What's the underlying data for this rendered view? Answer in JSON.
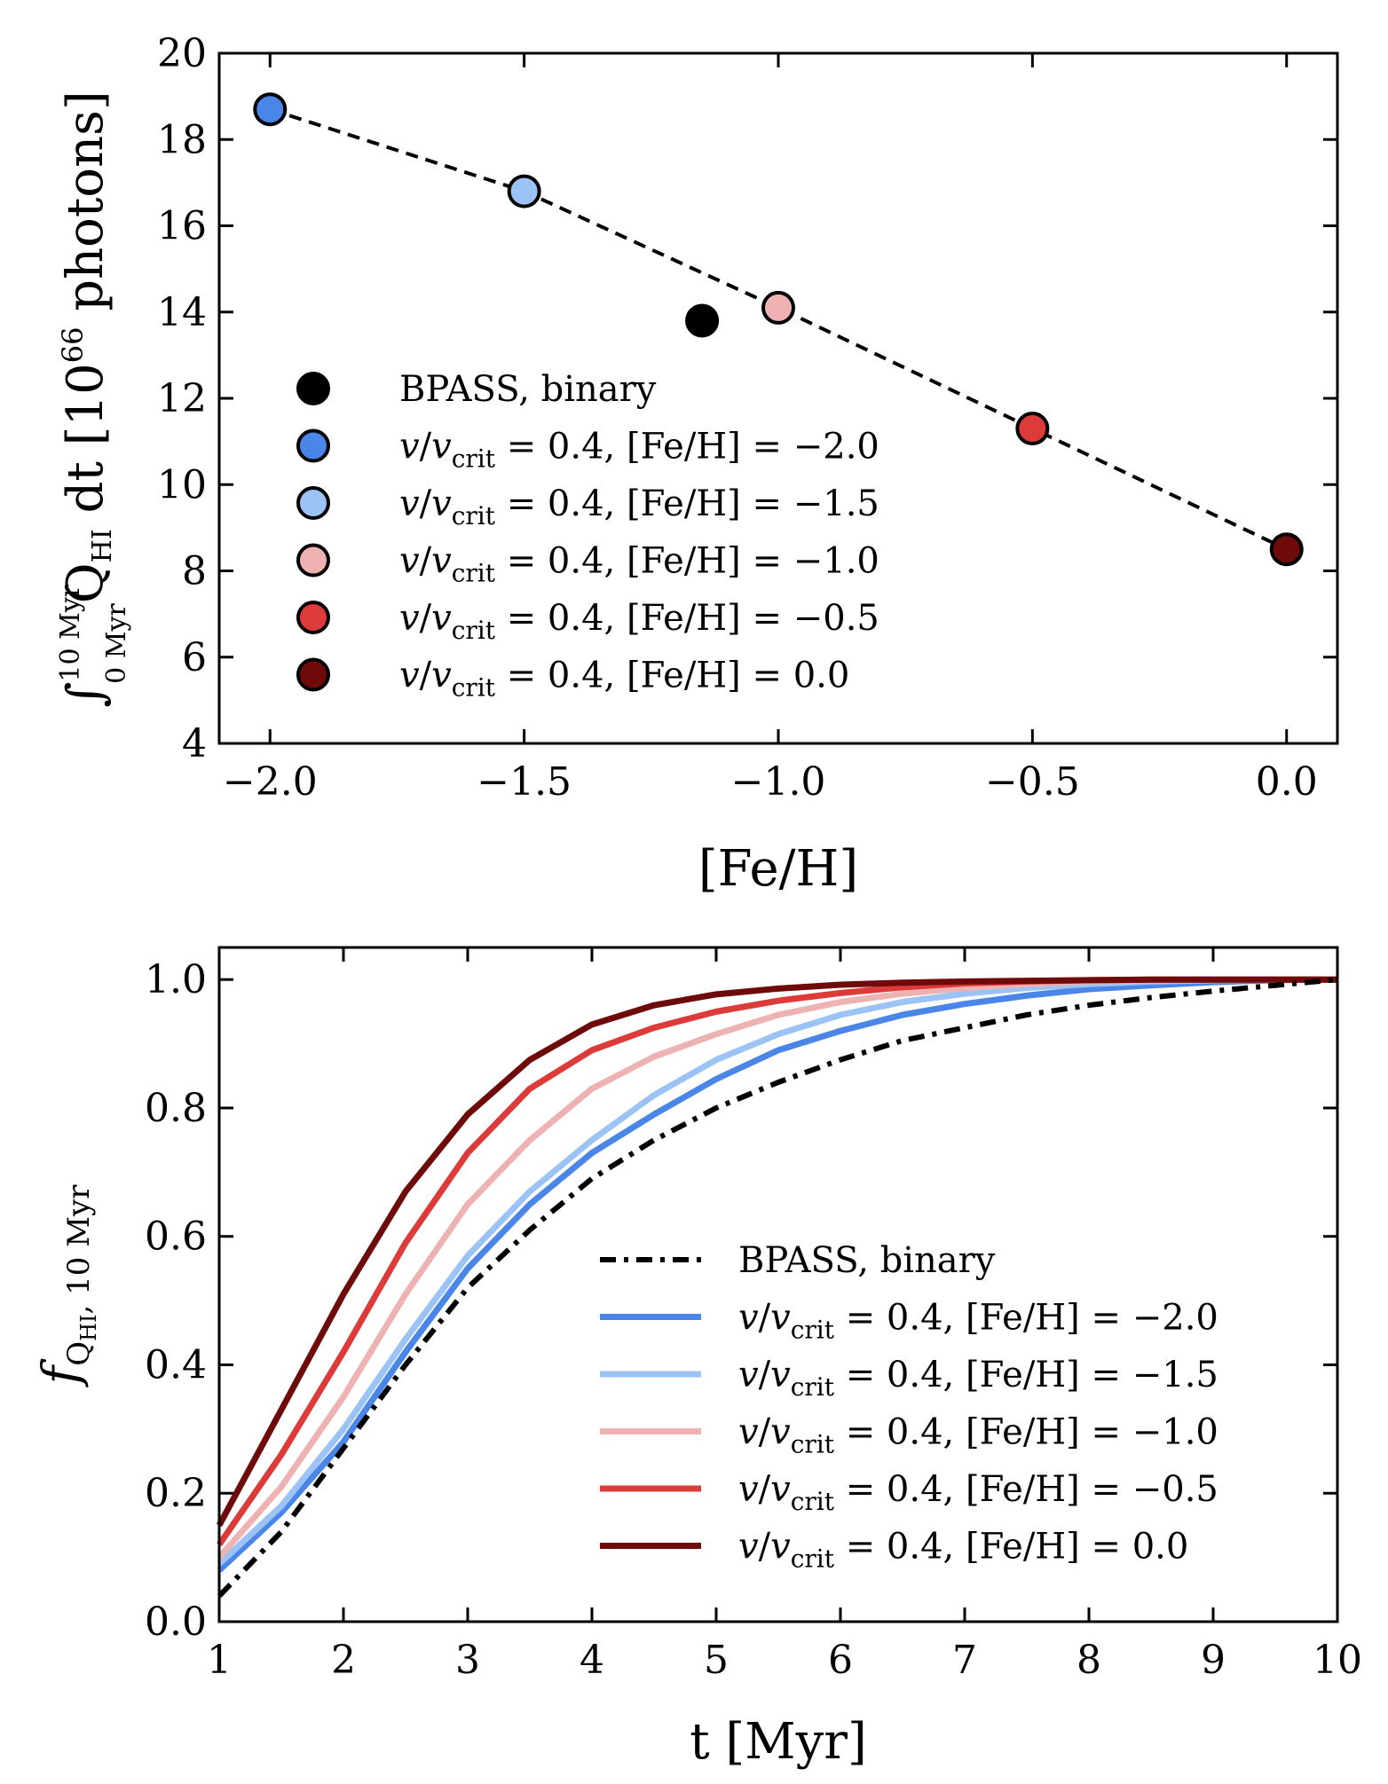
{
  "colors": {
    "bpass": "#000000",
    "feh_m2_0": "#4a86e8",
    "feh_m1_5": "#9cc3f5",
    "feh_m1_0": "#eeb2b2",
    "feh_m0_5": "#dd3a3a",
    "feh_0_0": "#6e0a0a"
  },
  "chart_data": [
    {
      "type": "scatter",
      "xlabel": "[Fe/H]",
      "ylabel": {
        "integral_upper": "10 Myr",
        "integral_lower": "0 Myr",
        "quantity": "Q",
        "quantity_sub": "HI",
        "dt": " dt [10",
        "exponent": "66",
        "unit": " photons]"
      },
      "xlim": [
        -2.1,
        0.1
      ],
      "ylim": [
        4,
        20
      ],
      "xticks": [
        "−2.0",
        "−1.5",
        "−1.0",
        "−0.5",
        "0.0"
      ],
      "xtick_values": [
        -2.0,
        -1.5,
        -1.0,
        -0.5,
        0.0
      ],
      "yticks": [
        "4",
        "6",
        "8",
        "10",
        "12",
        "14",
        "16",
        "18",
        "20"
      ],
      "ytick_values": [
        4,
        6,
        8,
        10,
        12,
        14,
        16,
        18,
        20
      ],
      "legend_position": "center-left",
      "trend_line": {
        "style": "dashed",
        "x": [
          -2.0,
          -1.5,
          -1.0,
          -0.5,
          0.0
        ],
        "y": [
          18.7,
          16.8,
          14.1,
          11.3,
          8.5
        ]
      },
      "points": [
        {
          "x": -1.15,
          "y": 13.8,
          "color_key": "bpass",
          "edge": "#000000"
        },
        {
          "x": -2.0,
          "y": 18.7,
          "color_key": "feh_m2_0",
          "edge": "#000000"
        },
        {
          "x": -1.5,
          "y": 16.8,
          "color_key": "feh_m1_5",
          "edge": "#000000"
        },
        {
          "x": -1.0,
          "y": 14.1,
          "color_key": "feh_m1_0",
          "edge": "#000000"
        },
        {
          "x": -0.5,
          "y": 11.3,
          "color_key": "feh_m0_5",
          "edge": "#000000"
        },
        {
          "x": 0.0,
          "y": 8.5,
          "color_key": "feh_0_0",
          "edge": "#000000"
        }
      ],
      "legend": [
        {
          "kind": "bpass",
          "label": "BPASS, binary",
          "color_key": "bpass"
        },
        {
          "kind": "rot",
          "v": "v",
          "vcrit": "v",
          "crit": "crit",
          "rest": " = 0.4,  [Fe/H] = −2.0",
          "color_key": "feh_m2_0"
        },
        {
          "kind": "rot",
          "v": "v",
          "vcrit": "v",
          "crit": "crit",
          "rest": " = 0.4,  [Fe/H] = −1.5",
          "color_key": "feh_m1_5"
        },
        {
          "kind": "rot",
          "v": "v",
          "vcrit": "v",
          "crit": "crit",
          "rest": " = 0.4,  [Fe/H] = −1.0",
          "color_key": "feh_m1_0"
        },
        {
          "kind": "rot",
          "v": "v",
          "vcrit": "v",
          "crit": "crit",
          "rest": " = 0.4,  [Fe/H] = −0.5",
          "color_key": "feh_m0_5"
        },
        {
          "kind": "rot",
          "v": "v",
          "vcrit": "v",
          "crit": "crit",
          "rest": " = 0.4,  [Fe/H] = 0.0",
          "color_key": "feh_0_0"
        }
      ]
    },
    {
      "type": "line",
      "xlabel": "t [Myr]",
      "ylabel": {
        "f": "f",
        "sub": "Q",
        "subsub": "HI",
        "rest": ", 10 Myr"
      },
      "xlim": [
        1,
        10
      ],
      "ylim": [
        0,
        1.05
      ],
      "xticks": [
        "1",
        "2",
        "3",
        "4",
        "5",
        "6",
        "7",
        "8",
        "9",
        "10"
      ],
      "xtick_values": [
        1,
        2,
        3,
        4,
        5,
        6,
        7,
        8,
        9,
        10
      ],
      "yticks": [
        "0.0",
        "0.2",
        "0.4",
        "0.6",
        "0.8",
        "1.0"
      ],
      "ytick_values": [
        0,
        0.2,
        0.4,
        0.6,
        0.8,
        1.0
      ],
      "legend_position": "lower-right",
      "x": [
        1,
        1.5,
        2,
        2.5,
        3,
        3.5,
        4,
        4.5,
        5,
        5.5,
        6,
        6.5,
        7,
        7.5,
        8,
        8.5,
        9,
        9.5,
        10
      ],
      "series": [
        {
          "label": "BPASS, binary",
          "color_key": "bpass",
          "style": "dashdot",
          "values": [
            0.04,
            0.14,
            0.27,
            0.4,
            0.52,
            0.61,
            0.69,
            0.75,
            0.8,
            0.84,
            0.875,
            0.905,
            0.925,
            0.945,
            0.96,
            0.972,
            0.982,
            0.991,
            1.0
          ]
        },
        {
          "label": "= 0.4,  [Fe/H] = −2.0",
          "color_key": "feh_m2_0",
          "style": "solid",
          "values": [
            0.08,
            0.17,
            0.28,
            0.42,
            0.55,
            0.65,
            0.73,
            0.79,
            0.845,
            0.89,
            0.92,
            0.945,
            0.962,
            0.975,
            0.985,
            0.991,
            0.996,
            0.999,
            1.0
          ]
        },
        {
          "label": "= 0.4,  [Fe/H] = −1.5",
          "color_key": "feh_m1_5",
          "style": "solid",
          "values": [
            0.09,
            0.18,
            0.3,
            0.44,
            0.57,
            0.67,
            0.75,
            0.82,
            0.875,
            0.915,
            0.945,
            0.965,
            0.978,
            0.987,
            0.993,
            0.997,
            0.999,
            1.0,
            1.0
          ]
        },
        {
          "label": "= 0.4,  [Fe/H] = −1.0",
          "color_key": "feh_m1_0",
          "style": "solid",
          "values": [
            0.1,
            0.21,
            0.35,
            0.51,
            0.65,
            0.75,
            0.83,
            0.88,
            0.915,
            0.945,
            0.965,
            0.978,
            0.987,
            0.993,
            0.997,
            0.999,
            1.0,
            1.0,
            1.0
          ]
        },
        {
          "label": "= 0.4,  [Fe/H] = −0.5",
          "color_key": "feh_m0_5",
          "style": "solid",
          "values": [
            0.12,
            0.26,
            0.42,
            0.59,
            0.73,
            0.83,
            0.89,
            0.925,
            0.95,
            0.967,
            0.979,
            0.988,
            0.994,
            0.997,
            0.999,
            1.0,
            1.0,
            1.0,
            1.0
          ]
        },
        {
          "label": "= 0.4,  [Fe/H] = 0.0",
          "color_key": "feh_0_0",
          "style": "solid",
          "values": [
            0.15,
            0.33,
            0.51,
            0.67,
            0.79,
            0.875,
            0.93,
            0.96,
            0.977,
            0.986,
            0.992,
            0.995,
            0.997,
            0.998,
            0.999,
            1.0,
            1.0,
            1.0,
            1.0
          ]
        }
      ],
      "legend": [
        {
          "kind": "bpass",
          "label": "BPASS, binary",
          "color_key": "bpass",
          "style": "dashdot"
        },
        {
          "kind": "rot",
          "v": "v",
          "vcrit": "v",
          "crit": "crit",
          "rest": " = 0.4,  [Fe/H] = −2.0",
          "color_key": "feh_m2_0"
        },
        {
          "kind": "rot",
          "v": "v",
          "vcrit": "v",
          "crit": "crit",
          "rest": " = 0.4,  [Fe/H] = −1.5",
          "color_key": "feh_m1_5"
        },
        {
          "kind": "rot",
          "v": "v",
          "vcrit": "v",
          "crit": "crit",
          "rest": " = 0.4,  [Fe/H] = −1.0",
          "color_key": "feh_m1_0"
        },
        {
          "kind": "rot",
          "v": "v",
          "vcrit": "v",
          "crit": "crit",
          "rest": " = 0.4,  [Fe/H] = −0.5",
          "color_key": "feh_m0_5"
        },
        {
          "kind": "rot",
          "v": "v",
          "vcrit": "v",
          "crit": "crit",
          "rest": " = 0.4,  [Fe/H] = 0.0",
          "color_key": "feh_0_0"
        }
      ]
    }
  ]
}
